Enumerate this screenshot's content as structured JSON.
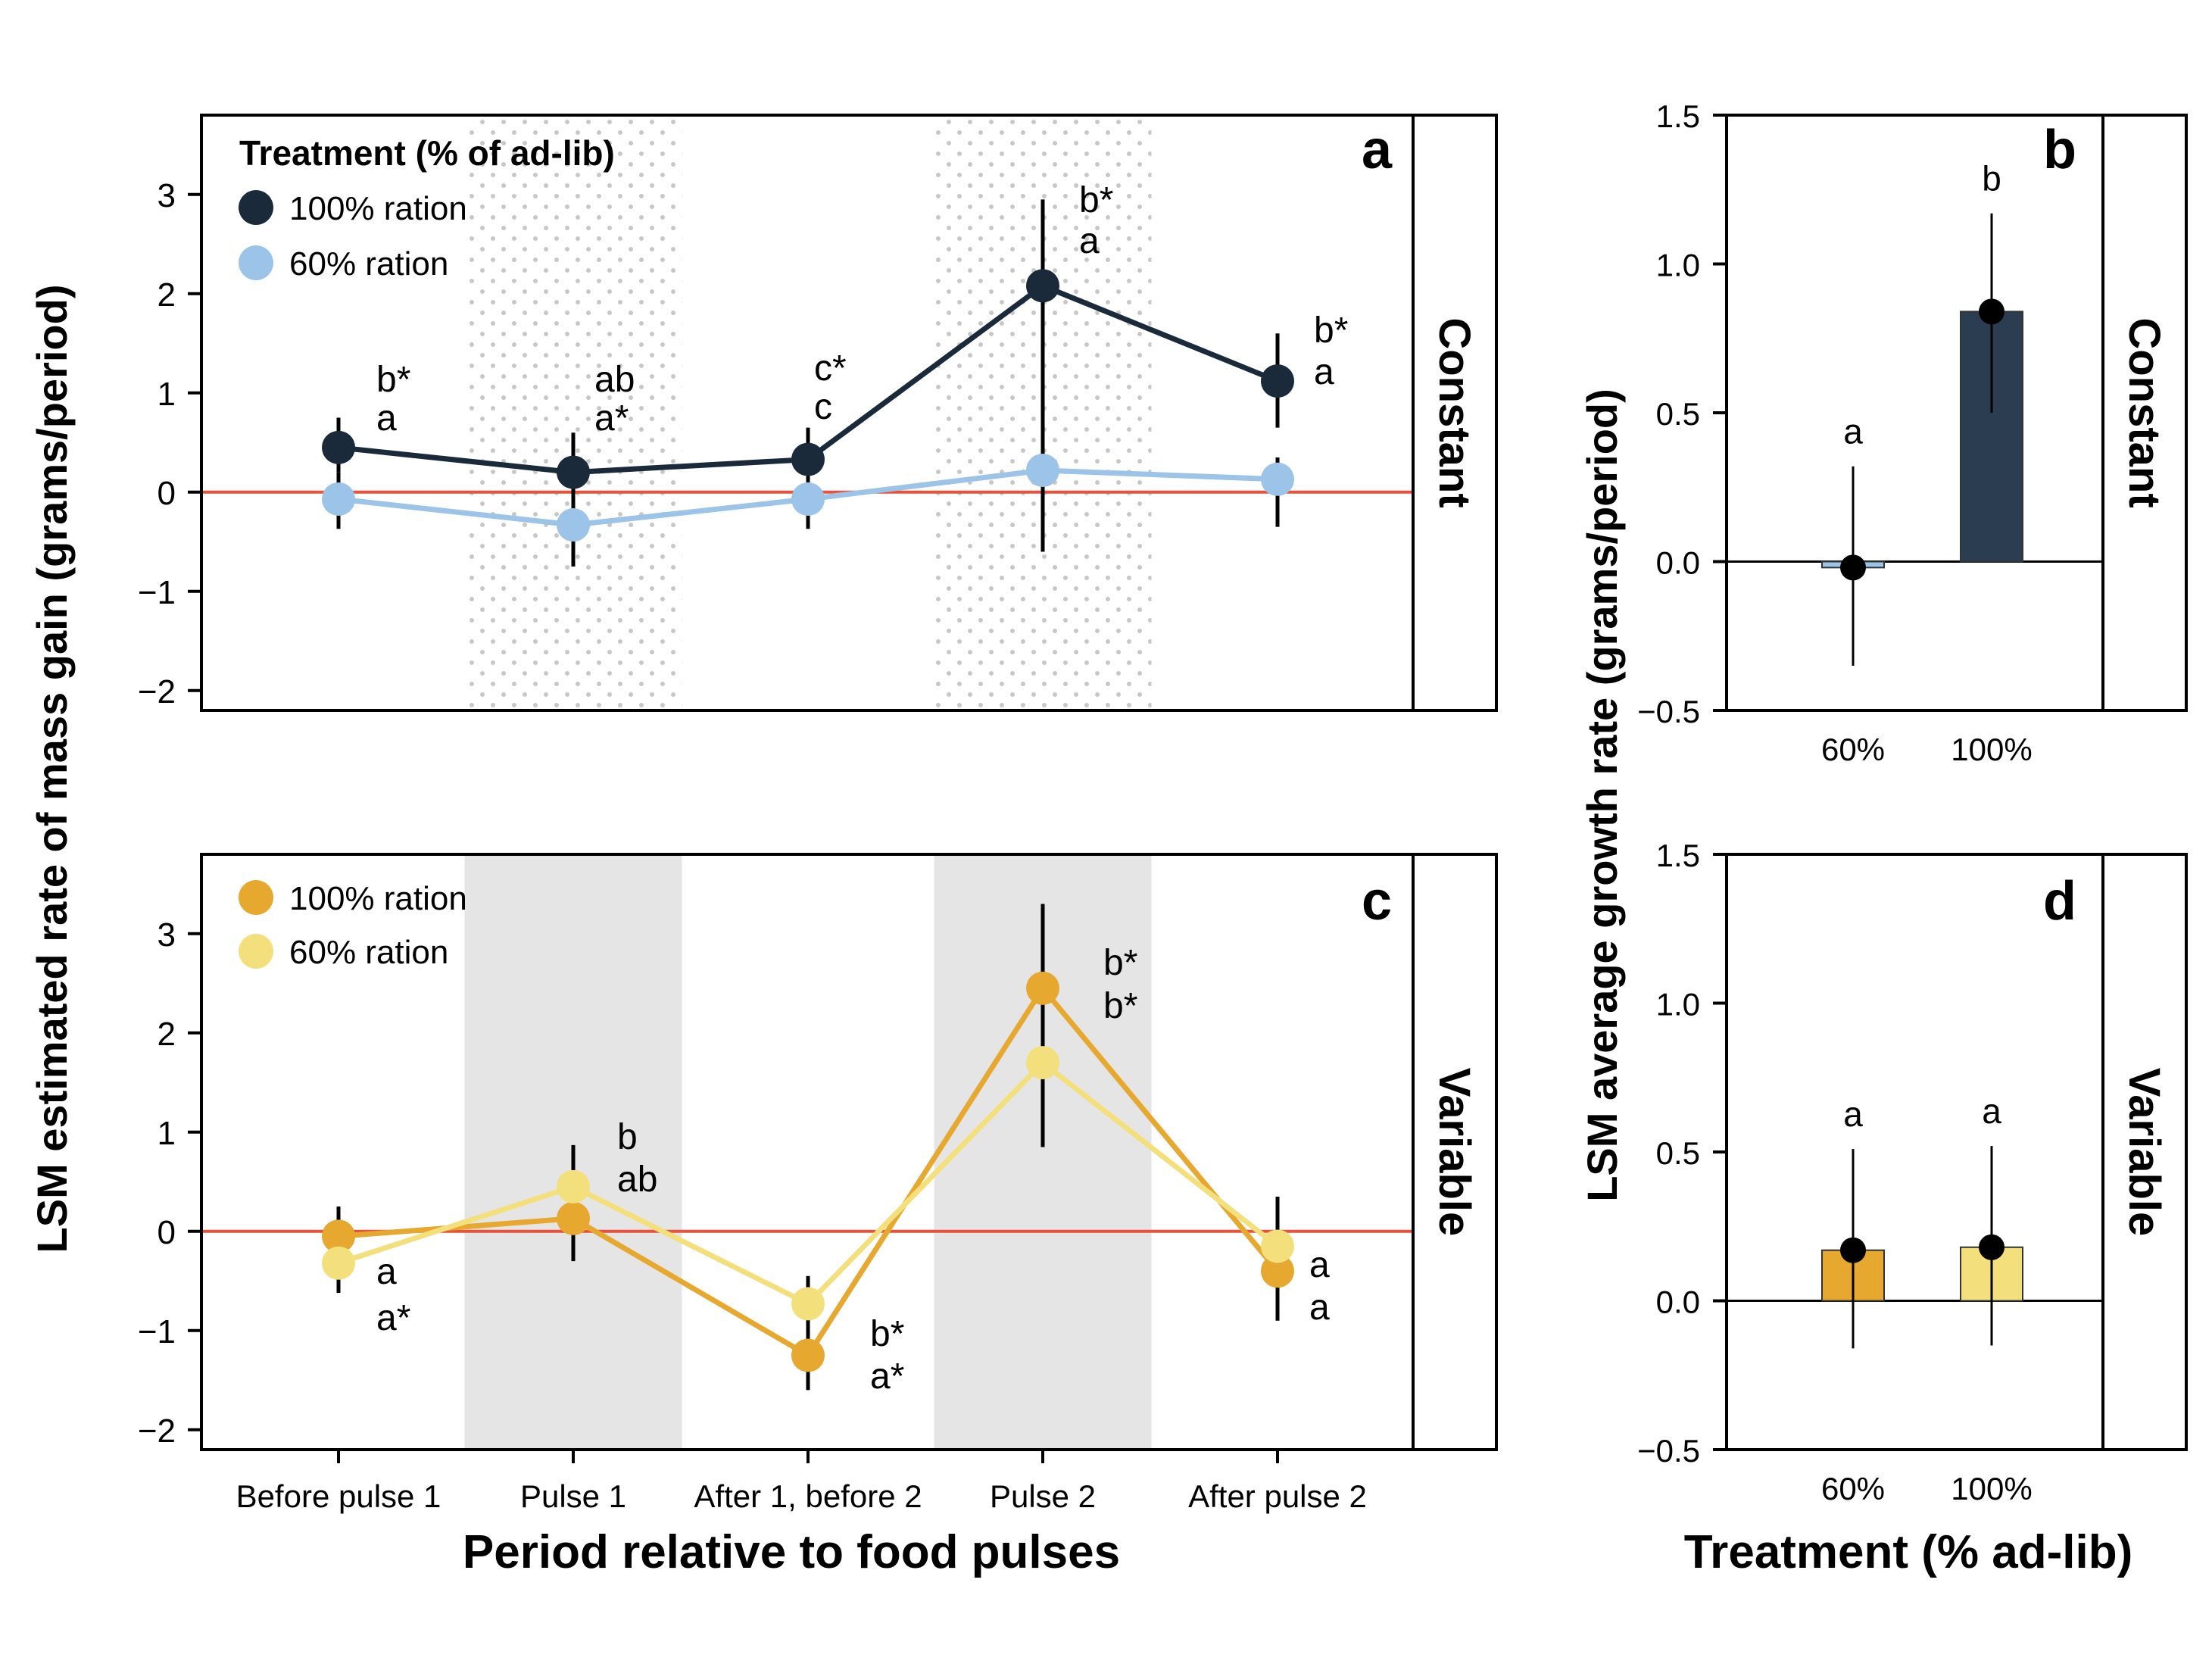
{
  "figure": {
    "y_label_left": "LSM estimated rate of mass gain (grams/period)",
    "x_label_left": "Period relative to food pulses",
    "y_label_right": "LSM average growth rate (grams/period)",
    "x_label_right": "Treatment (% ad-lib)"
  },
  "panel_a": {
    "letter": "a",
    "strip": "Constant",
    "legend_title": "Treatment (% of ad-lib)",
    "legend": [
      "100% ration",
      "60% ration"
    ]
  },
  "panel_b": {
    "letter": "b",
    "strip": "Constant"
  },
  "panel_c": {
    "letter": "c",
    "strip": "Variable",
    "legend": [
      "100% ration",
      "60% ration"
    ]
  },
  "panel_d": {
    "letter": "d",
    "strip": "Variable"
  },
  "colors": {
    "const_100": "#1b2a3a",
    "const_60": "#9cc3e8",
    "var_100": "#e6a82e",
    "var_60": "#f3e07c",
    "zero_line": "#e8523a",
    "shade": "#e5e5e5",
    "dots": "#c8c8c8",
    "bar_const_100": "#2b3d50",
    "bar_const_60": "#9cc3e8",
    "bar_var_100": "#f3e07c",
    "bar_var_60": "#e6a82e"
  },
  "chart_data": [
    {
      "panel": "a",
      "type": "line",
      "categories": [
        "Before pulse 1",
        "Pulse 1",
        "After 1, before 2",
        "Pulse 2",
        "After pulse 2"
      ],
      "ylim": [
        -2.2,
        3.8
      ],
      "yticks": [
        "3",
        "2",
        "1",
        "0",
        "−1",
        "−2"
      ],
      "ytick_values": [
        3,
        2,
        1,
        0,
        -1,
        -2
      ],
      "pulse_shading": "dotted",
      "pulse_periods": [
        1,
        3
      ],
      "series": [
        {
          "name": "100% ration",
          "values": [
            0.45,
            0.2,
            0.33,
            2.08,
            1.12
          ],
          "ci_low": [
            0.2,
            -0.05,
            0.1,
            -0.6,
            0.65
          ],
          "ci_high": [
            0.75,
            0.6,
            0.65,
            2.95,
            1.6
          ],
          "labels": [
            "b*",
            "ab",
            "c*",
            "b*",
            "b*"
          ]
        },
        {
          "name": "60% ration",
          "values": [
            -0.07,
            -0.33,
            -0.07,
            0.22,
            0.13
          ],
          "ci_low": [
            -0.37,
            -0.75,
            -0.37,
            -0.6,
            -0.35
          ],
          "ci_high": [
            0.2,
            0.0,
            0.1,
            0.4,
            0.35
          ],
          "labels": [
            "a",
            "a*",
            "c",
            "a",
            "a"
          ]
        }
      ]
    },
    {
      "panel": "b",
      "type": "bar",
      "categories": [
        "60%",
        "100%"
      ],
      "values": [
        -0.02,
        0.84
      ],
      "ci_low": [
        -0.35,
        0.5
      ],
      "ci_high": [
        0.32,
        1.17
      ],
      "labels": [
        "a",
        "b"
      ],
      "ylim": [
        -0.5,
        1.5
      ],
      "yticks": [
        "1.5",
        "1.0",
        "0.5",
        "0.0",
        "−0.5"
      ],
      "ytick_values": [
        1.5,
        1.0,
        0.5,
        0.0,
        -0.5
      ]
    },
    {
      "panel": "c",
      "type": "line",
      "categories": [
        "Before pulse 1",
        "Pulse 1",
        "After 1, before 2",
        "Pulse 2",
        "After pulse 2"
      ],
      "ylim": [
        -2.2,
        3.8
      ],
      "yticks": [
        "3",
        "2",
        "1",
        "0",
        "−1",
        "−2"
      ],
      "ytick_values": [
        3,
        2,
        1,
        0,
        -1,
        -2
      ],
      "pulse_shading": "solid",
      "pulse_periods": [
        1,
        3
      ],
      "series": [
        {
          "name": "100% ration",
          "values": [
            -0.05,
            0.13,
            -1.25,
            2.45,
            -0.4
          ],
          "ci_low": [
            -0.3,
            -0.3,
            -1.6,
            1.6,
            -0.9
          ],
          "ci_high": [
            0.25,
            0.5,
            -0.9,
            3.3,
            0.05
          ],
          "labels": [
            "a",
            "b",
            "b*",
            "b*",
            "a"
          ]
        },
        {
          "name": "60% ration",
          "values": [
            -0.32,
            0.45,
            -0.73,
            1.7,
            -0.15
          ],
          "ci_low": [
            -0.62,
            0.1,
            -1.0,
            0.85,
            -0.5
          ],
          "ci_high": [
            -0.05,
            0.87,
            -0.45,
            2.5,
            0.35
          ],
          "labels": [
            "a*",
            "ab",
            "a*",
            "b*",
            "a"
          ]
        }
      ]
    },
    {
      "panel": "d",
      "type": "bar",
      "categories": [
        "60%",
        "100%"
      ],
      "values": [
        0.17,
        0.18
      ],
      "ci_low": [
        -0.16,
        -0.15
      ],
      "ci_high": [
        0.51,
        0.52
      ],
      "labels": [
        "a",
        "a"
      ],
      "ylim": [
        -0.5,
        1.5
      ],
      "yticks": [
        "1.5",
        "1.0",
        "0.5",
        "0.0",
        "−0.5"
      ],
      "ytick_values": [
        1.5,
        1.0,
        0.5,
        0.0,
        -0.5
      ]
    }
  ]
}
